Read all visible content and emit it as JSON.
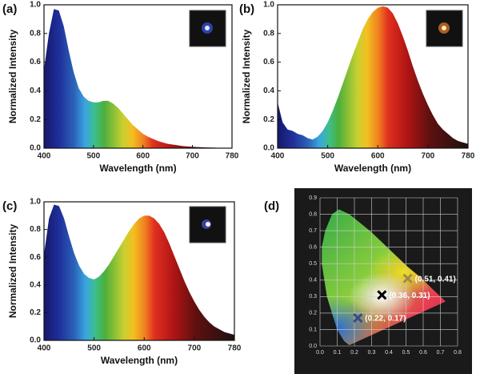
{
  "chart_data": [
    {
      "type": "area",
      "panel_label": "(a)",
      "x_label": "Wavelength (nm)",
      "y_label": "Normalized Intensity",
      "x": [
        400,
        410,
        420,
        430,
        440,
        450,
        460,
        470,
        480,
        490,
        500,
        510,
        520,
        530,
        540,
        550,
        560,
        570,
        580,
        590,
        600,
        610,
        620,
        630,
        640,
        650,
        660,
        670,
        680,
        690,
        700,
        710,
        720,
        730,
        740,
        750,
        760,
        770,
        780
      ],
      "values": [
        0.55,
        0.8,
        0.97,
        0.96,
        0.85,
        0.68,
        0.53,
        0.42,
        0.36,
        0.33,
        0.32,
        0.32,
        0.33,
        0.33,
        0.31,
        0.28,
        0.24,
        0.2,
        0.16,
        0.13,
        0.1,
        0.08,
        0.065,
        0.05,
        0.04,
        0.03,
        0.025,
        0.02,
        0.015,
        0.012,
        0.01,
        0.008,
        0.006,
        0.005,
        0.004,
        0.003,
        0.002,
        0.002,
        0.001
      ],
      "xlim": [
        400,
        780
      ],
      "ylim": [
        0,
        1.0
      ],
      "xticks": [
        400,
        500,
        600,
        700,
        780
      ],
      "yticks": [
        {
          "value": 0,
          "label": "0.0"
        },
        0.2,
        0.4,
        0.6,
        0.8,
        {
          "value": 1,
          "label": "1.0"
        }
      ]
    },
    {
      "type": "area",
      "panel_label": "(b)",
      "x_label": "Wavelength (nm)",
      "y_label": "Normalized Intensity",
      "x": [
        400,
        410,
        420,
        430,
        440,
        450,
        460,
        470,
        480,
        490,
        500,
        510,
        520,
        530,
        540,
        550,
        560,
        570,
        580,
        590,
        600,
        610,
        620,
        630,
        640,
        650,
        660,
        670,
        680,
        690,
        700,
        710,
        720,
        730,
        740,
        750,
        760,
        770,
        780
      ],
      "values": [
        0.32,
        0.18,
        0.13,
        0.12,
        0.1,
        0.09,
        0.07,
        0.06,
        0.08,
        0.12,
        0.18,
        0.26,
        0.35,
        0.45,
        0.55,
        0.65,
        0.74,
        0.83,
        0.9,
        0.95,
        0.98,
        0.99,
        0.98,
        0.94,
        0.87,
        0.78,
        0.68,
        0.57,
        0.47,
        0.38,
        0.3,
        0.23,
        0.17,
        0.13,
        0.1,
        0.07,
        0.05,
        0.04,
        0.03
      ],
      "xlim": [
        400,
        780
      ],
      "ylim": [
        0,
        1.0
      ],
      "xticks": [
        400,
        500,
        600,
        700,
        780
      ],
      "yticks": [
        {
          "value": 0,
          "label": "0.0"
        },
        0.2,
        0.4,
        0.6,
        0.8,
        {
          "value": 1,
          "label": "1.0"
        }
      ]
    },
    {
      "type": "area",
      "panel_label": "(c)",
      "x_label": "Wavelength (nm)",
      "y_label": "Normalized Intensity",
      "x": [
        400,
        410,
        420,
        430,
        440,
        450,
        460,
        470,
        480,
        490,
        500,
        510,
        520,
        530,
        540,
        550,
        560,
        570,
        580,
        590,
        600,
        610,
        620,
        630,
        640,
        650,
        660,
        670,
        680,
        690,
        700,
        710,
        720,
        730,
        740,
        750,
        760,
        770,
        780
      ],
      "values": [
        0.62,
        0.88,
        0.98,
        0.97,
        0.88,
        0.75,
        0.63,
        0.54,
        0.48,
        0.45,
        0.44,
        0.46,
        0.5,
        0.55,
        0.61,
        0.67,
        0.73,
        0.79,
        0.84,
        0.88,
        0.9,
        0.9,
        0.88,
        0.84,
        0.78,
        0.7,
        0.61,
        0.52,
        0.43,
        0.35,
        0.28,
        0.22,
        0.17,
        0.13,
        0.1,
        0.08,
        0.06,
        0.05,
        0.04
      ],
      "xlim": [
        400,
        780
      ],
      "ylim": [
        0,
        1.0
      ],
      "xticks": [
        400,
        500,
        600,
        700,
        780
      ],
      "yticks": [
        {
          "value": 0,
          "label": "0.0"
        },
        0.2,
        0.4,
        0.6,
        0.8,
        {
          "value": 1,
          "label": "1.0"
        }
      ]
    },
    {
      "type": "scatter",
      "panel_label": "(d)",
      "x": [
        0.51,
        0.36,
        0.22
      ],
      "y": [
        0.41,
        0.31,
        0.17
      ],
      "value_labels": [
        "(0.51, 0.41)",
        "(0.36, 0.31)",
        "(0.22, 0.17)"
      ],
      "colors": [
        "#a08a4a",
        "#000000",
        "#3a4a8a"
      ],
      "xlim": [
        0,
        0.8
      ],
      "ylim": [
        0,
        0.9
      ],
      "xticks": [
        {
          "value": 0,
          "label": "0.0"
        },
        0.1,
        0.2,
        0.3,
        0.4,
        0.5,
        0.6,
        0.7,
        0.8
      ],
      "yticks": [
        {
          "value": 0,
          "label": "0.0"
        },
        0.1,
        0.2,
        0.3,
        0.4,
        0.5,
        0.6,
        0.7,
        0.8,
        0.9
      ],
      "grid": true
    }
  ]
}
